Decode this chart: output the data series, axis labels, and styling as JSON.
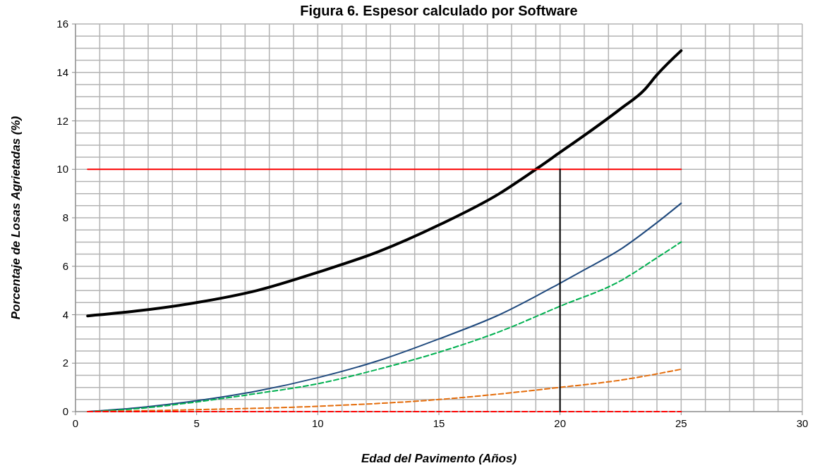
{
  "chart_data": {
    "type": "line",
    "title": "Figura 6. Espesor calculado por Software",
    "xlabel": "Edad del Pavimento (Años)",
    "ylabel": "Porcentaje de Losas Agrietadas (%)",
    "xlim": [
      0,
      30
    ],
    "ylim": [
      0,
      16
    ],
    "xticks": [
      0,
      {
        "value": 1,
        "label": null
      },
      {
        "value": 2,
        "label": null
      },
      {
        "value": 3,
        "label": null
      },
      {
        "value": 4,
        "label": null
      },
      5,
      {
        "value": 6,
        "label": null
      },
      {
        "value": 7,
        "label": null
      },
      {
        "value": 8,
        "label": null
      },
      {
        "value": 9,
        "label": null
      },
      10,
      {
        "value": 11,
        "label": null
      },
      {
        "value": 12,
        "label": null
      },
      {
        "value": 13,
        "label": null
      },
      {
        "value": 14,
        "label": null
      },
      15,
      {
        "value": 16,
        "label": null
      },
      {
        "value": 17,
        "label": null
      },
      {
        "value": 18,
        "label": null
      },
      {
        "value": 19,
        "label": null
      },
      20,
      {
        "value": 21,
        "label": null
      },
      {
        "value": 22,
        "label": null
      },
      {
        "value": 23,
        "label": null
      },
      {
        "value": 24,
        "label": null
      },
      25,
      {
        "value": 26,
        "label": null
      },
      {
        "value": 27,
        "label": null
      },
      {
        "value": 28,
        "label": null
      },
      {
        "value": 29,
        "label": null
      },
      30
    ],
    "yticks": [
      0,
      {
        "value": 0.5,
        "label": null
      },
      {
        "value": 1,
        "label": null
      },
      {
        "value": 1.5,
        "label": null
      },
      2,
      {
        "value": 2.5,
        "label": null
      },
      {
        "value": 3,
        "label": null
      },
      {
        "value": 3.5,
        "label": null
      },
      4,
      {
        "value": 4.5,
        "label": null
      },
      {
        "value": 5,
        "label": null
      },
      {
        "value": 5.5,
        "label": null
      },
      6,
      {
        "value": 6.5,
        "label": null
      },
      {
        "value": 7,
        "label": null
      },
      {
        "value": 7.5,
        "label": null
      },
      8,
      {
        "value": 8.5,
        "label": null
      },
      {
        "value": 9,
        "label": null
      },
      {
        "value": 9.5,
        "label": null
      },
      10,
      {
        "value": 10.5,
        "label": null
      },
      {
        "value": 11,
        "label": null
      },
      {
        "value": 11.5,
        "label": null
      },
      12,
      {
        "value": 12.5,
        "label": null
      },
      {
        "value": 13,
        "label": null
      },
      {
        "value": 13.5,
        "label": null
      },
      14,
      {
        "value": 14.5,
        "label": null
      },
      {
        "value": 15,
        "label": null
      },
      {
        "value": 15.5,
        "label": null
      },
      16
    ],
    "grid": true,
    "series": [
      {
        "color": "#000000",
        "line_style": "solid",
        "x": [
          0.5,
          2.5,
          5,
          7.5,
          10,
          12.5,
          15,
          17.5,
          19,
          20,
          21,
          22.5,
          23.5,
          24,
          25
        ],
        "values": [
          3.95,
          4.15,
          4.5,
          5.0,
          5.75,
          6.6,
          7.7,
          9.0,
          10,
          10.7,
          11.4,
          12.5,
          13.3,
          13.9,
          14.9
        ]
      },
      {
        "color": "#1f497d",
        "line_style": "solid",
        "x": [
          0.5,
          2.5,
          5,
          7.5,
          10,
          12.5,
          15,
          17.5,
          20,
          21,
          22.5,
          24,
          25
        ],
        "values": [
          0,
          0.15,
          0.45,
          0.85,
          1.4,
          2.1,
          3.0,
          4.0,
          5.3,
          5.85,
          6.7,
          7.8,
          8.6
        ]
      },
      {
        "color": "#00b050",
        "line_style": "dashed",
        "x": [
          0.5,
          2.5,
          5,
          7.5,
          10,
          12.5,
          15,
          17.5,
          20,
          22.5,
          24,
          25
        ],
        "values": [
          0,
          0.12,
          0.4,
          0.75,
          1.15,
          1.75,
          2.45,
          3.3,
          4.35,
          5.4,
          6.35,
          7.0
        ]
      },
      {
        "color": "#e46c0a",
        "line_style": "dashed",
        "x": [
          0.5,
          5,
          10,
          15,
          20,
          22.5,
          25
        ],
        "values": [
          0,
          0.08,
          0.22,
          0.5,
          1.0,
          1.3,
          1.75
        ]
      },
      {
        "color": "#ff0000",
        "line_style": "dashed",
        "x": [
          0.5,
          25
        ],
        "values": [
          0,
          0
        ]
      },
      {
        "color": "#ff0000",
        "line_style": "solid",
        "x": [
          0.5,
          25
        ],
        "values": [
          10,
          10
        ]
      },
      {
        "color": "#000000",
        "line_style": "solid",
        "x": [
          20,
          20
        ],
        "values": [
          0,
          10
        ]
      }
    ]
  }
}
